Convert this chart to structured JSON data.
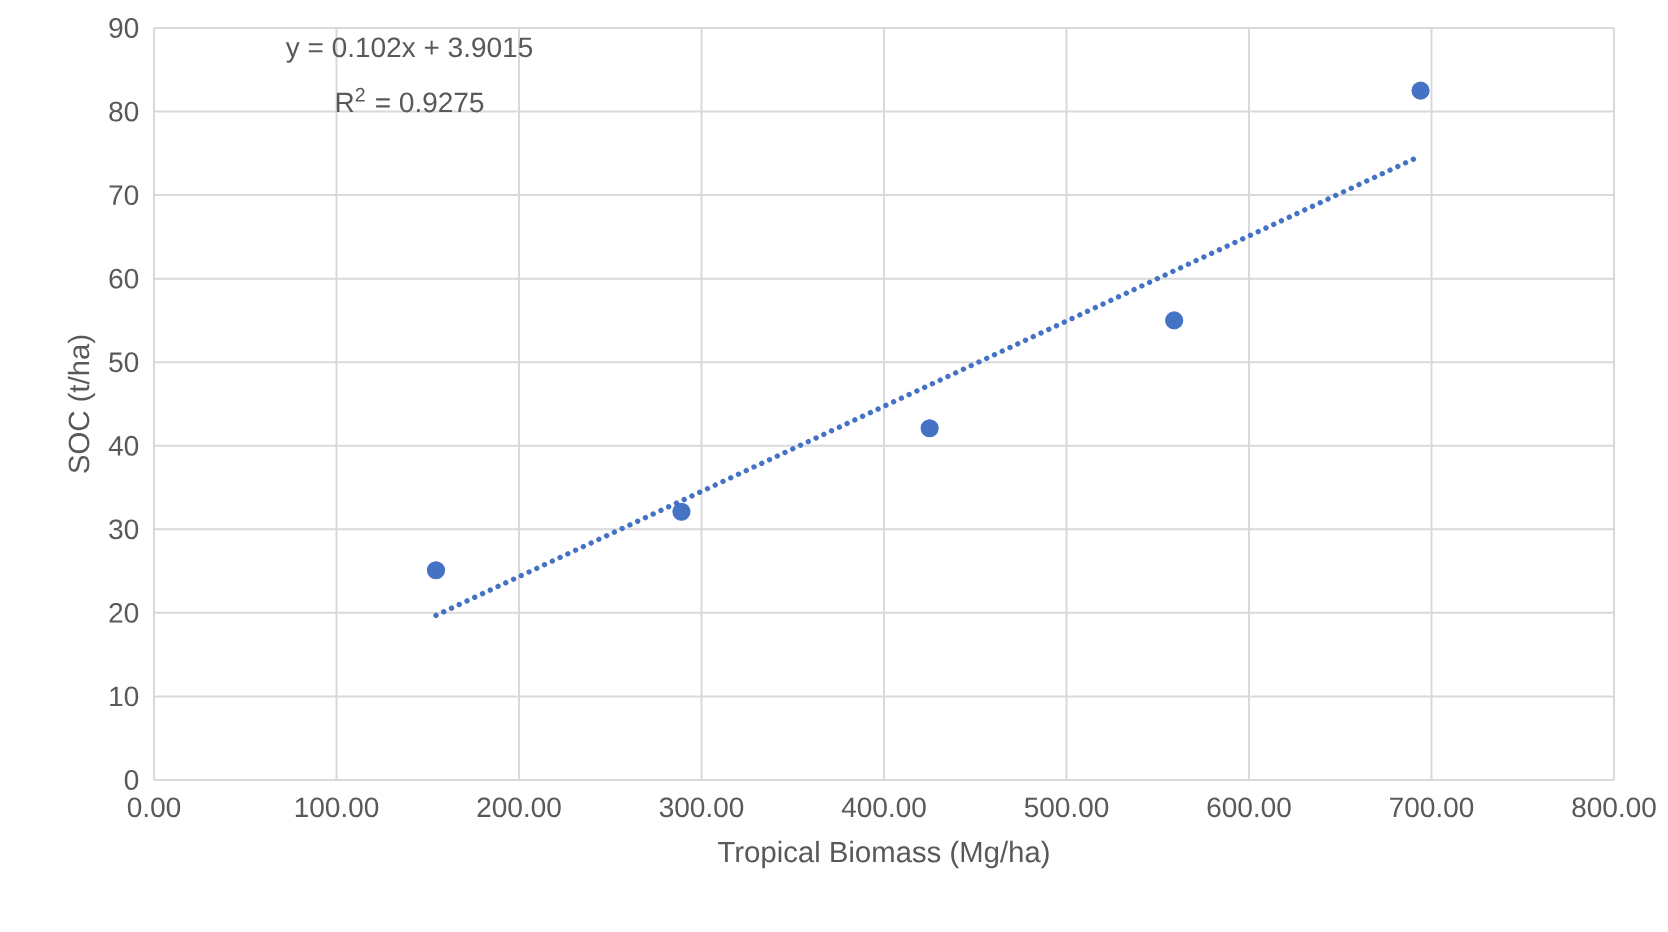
{
  "chart_data": {
    "type": "scatter",
    "xlabel": "Tropical Biomass (Mg/ha)",
    "ylabel": "SOC (t/ha)",
    "series": [
      {
        "type": "scatter",
        "color": "#4472c4",
        "x": [
          154.5,
          289,
          425,
          559,
          694
        ],
        "values": [
          25.1,
          32.1,
          42.1,
          55.0,
          82.5
        ]
      },
      {
        "type": "line",
        "color": "#4472c4",
        "marker": "none",
        "line_style": "dotted",
        "x": [
          154.5,
          694
        ],
        "values": [
          19.7,
          74.7
        ]
      }
    ],
    "annotations": [
      "y = 0.102x + 3.9015",
      "R$^{2}$ = 0.9275"
    ],
    "xlim": [
      0,
      800
    ],
    "ylim": [
      0,
      90
    ],
    "xticks": [
      {
        "value": 0,
        "label": "0.00"
      },
      {
        "value": 100,
        "label": "100.00"
      },
      {
        "value": 200,
        "label": "200.00"
      },
      {
        "value": 300,
        "label": "300.00"
      },
      {
        "value": 400,
        "label": "400.00"
      },
      {
        "value": 500,
        "label": "500.00"
      },
      {
        "value": 600,
        "label": "600.00"
      },
      {
        "value": 700,
        "label": "700.00"
      },
      {
        "value": 800,
        "label": "800.00"
      }
    ],
    "yticks": [
      0,
      10,
      20,
      30,
      40,
      50,
      60,
      70,
      80,
      90
    ],
    "grid": true,
    "marker": "circle"
  }
}
